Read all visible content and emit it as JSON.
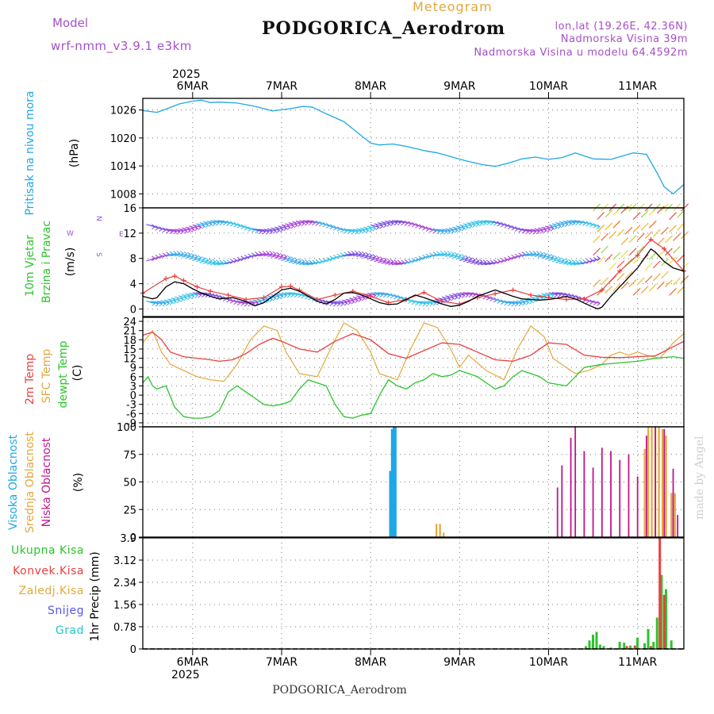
{
  "header": {
    "model_label": "Model",
    "model_name": "wrf-nmm_v3.9.1 e3km",
    "meteogram_label": "Meteogram",
    "station": "PODGORICA_Aerodrom",
    "lonlat": "lon,lat (19.26E, 42.36N)",
    "altitude": "Nadmorska Visina 39m",
    "model_altitude": "Nadmorska Visina u modelu 64.4592m",
    "footer_station": "PODGORICA_Aerodrom",
    "credit": "made by Angel"
  },
  "time_axis": {
    "year": "2025",
    "days": [
      "6MAR",
      "7MAR",
      "8MAR",
      "9MAR",
      "10MAR",
      "11MAR"
    ],
    "range_days": [
      -0.56,
      5.52
    ]
  },
  "colors": {
    "pressure": "#1ea7e6",
    "t2m": "#e8403e",
    "tsfc": "#e3a83b",
    "dewpt": "#2bc42b",
    "cloud_high": "#1ea7e6",
    "cloud_mid": "#e3a83b",
    "cloud_low": "#c0148c",
    "precip_total": "#2bc42b",
    "precip_conv": "#e8403e",
    "wind_gust": "#e8403e",
    "wind_speed": "#000000",
    "title_purple": "#a650c8",
    "label_blue": "#1ea7e6",
    "label_green": "#2bc42b",
    "label_red": "#e8403e",
    "label_orange": "#e3a83b",
    "label_magenta": "#c0148c",
    "label_violet": "#5555ee",
    "label_cyan": "#22c8c8"
  },
  "panels": {
    "pressure": {
      "label1": "Pritisak na nivou mora",
      "unit": "(hPa)"
    },
    "wind": {
      "label1": "10m Vjetar",
      "label2": "Brzina i Pravac",
      "unit": "(m/s)",
      "compass_w": "W",
      "compass_e": "E",
      "compass_n": "N",
      "compass_s": "S"
    },
    "temp": {
      "label1": "2m Temp",
      "label2": "SFC Temp",
      "label3": "dewpt Temp",
      "unit": "(C)"
    },
    "cloud": {
      "label1": "Visoka Oblacnost",
      "label2": "Srednja Oblacnost",
      "label3": "Niska Oblacnost",
      "unit": "(%)"
    },
    "precip": {
      "label1": "Ukupna Kisa",
      "label2": "Konvek.Kisa",
      "label3": "Zaledj.Kisa",
      "label4": "Snijeg",
      "label5": "Grad",
      "unit": "1hr Precip (mm)"
    }
  },
  "chart_data": [
    {
      "type": "line",
      "title": "Pritisak na nivou mora",
      "ylabel": "(hPa)",
      "ylim": [
        1005,
        1028.5
      ],
      "yticks": [
        "1008",
        "1014",
        "1020",
        "1026"
      ],
      "ytick_values": [
        1008,
        1014,
        1020,
        1026
      ],
      "series": [
        {
          "name": "pressure",
          "x": [
            -0.56,
            -0.4,
            -0.3,
            -0.15,
            0,
            0.1,
            0.2,
            0.3,
            0.5,
            0.7,
            0.9,
            1.1,
            1.25,
            1.35,
            1.5,
            1.7,
            1.85,
            2.0,
            2.1,
            2.25,
            2.4,
            2.6,
            2.75,
            2.9,
            3.05,
            3.25,
            3.4,
            3.55,
            3.7,
            3.85,
            4.0,
            4.15,
            4.3,
            4.5,
            4.7,
            4.95,
            5.1,
            5.15,
            5.22,
            5.3,
            5.4,
            5.52
          ],
          "values": [
            1025.9,
            1025.5,
            1026.2,
            1027.3,
            1027.9,
            1028.1,
            1027.6,
            1027.7,
            1027.5,
            1026.8,
            1025.8,
            1026.3,
            1026.8,
            1026.6,
            1025.2,
            1023.5,
            1021.2,
            1018.9,
            1018.5,
            1018.7,
            1018.2,
            1017.3,
            1016.8,
            1016.0,
            1015.2,
            1014.3,
            1013.9,
            1014.6,
            1015.5,
            1015.9,
            1015.4,
            1015.8,
            1016.8,
            1015.5,
            1015.4,
            1016.8,
            1016.5,
            1014.8,
            1012.5,
            1009.5,
            1008.0,
            1010.0
          ]
        }
      ]
    },
    {
      "type": "line",
      "title": "10m Vjetar Brzina i Pravac",
      "ylabel": "(m/s)",
      "ylim": [
        -1.2,
        16
      ],
      "yticks": [
        "0",
        "4",
        "8",
        "12",
        "16"
      ],
      "ytick_values": [
        0,
        4,
        8,
        12,
        16
      ],
      "series": [
        {
          "name": "wind_speed",
          "x": [
            -0.56,
            -0.45,
            -0.4,
            -0.3,
            -0.2,
            -0.1,
            0,
            0.1,
            0.2,
            0.3,
            0.45,
            0.6,
            0.7,
            0.8,
            0.9,
            1.0,
            1.1,
            1.2,
            1.3,
            1.4,
            1.5,
            1.6,
            1.7,
            1.8,
            1.9,
            2.0,
            2.1,
            2.2,
            2.3,
            2.4,
            2.5,
            2.6,
            2.7,
            2.8,
            2.9,
            3.0,
            3.1,
            3.2,
            3.3,
            3.4,
            3.5,
            3.6,
            3.7,
            3.8,
            3.9,
            4.0,
            4.1,
            4.2,
            4.3,
            4.45,
            4.55,
            4.6,
            4.7,
            4.8,
            4.9,
            5.0,
            5.1,
            5.15,
            5.2,
            5.3,
            5.4,
            5.52
          ],
          "values": [
            2.0,
            1.6,
            1.8,
            3.5,
            4.3,
            4.0,
            3.2,
            2.5,
            2.0,
            1.6,
            1.8,
            1.2,
            0.5,
            1.0,
            2.0,
            3.0,
            3.3,
            2.8,
            2.0,
            1.2,
            0.8,
            1.5,
            2.5,
            2.6,
            2.2,
            1.6,
            1.0,
            0.7,
            0.8,
            1.5,
            2.2,
            1.8,
            1.3,
            0.8,
            0.4,
            0.6,
            1.2,
            2.0,
            2.5,
            3.0,
            2.5,
            2.0,
            1.6,
            1.5,
            1.4,
            1.5,
            1.7,
            2.0,
            1.6,
            0.6,
            0.0,
            0.3,
            2.0,
            3.5,
            5.0,
            6.5,
            8.5,
            9.5,
            9.0,
            7.5,
            6.5,
            6.0
          ]
        },
        {
          "name": "wind_gust",
          "x": [
            -0.56,
            -0.3,
            -0.2,
            -0.1,
            0.05,
            0.2,
            0.4,
            0.6,
            0.8,
            1.0,
            1.1,
            1.2,
            1.4,
            1.6,
            1.8,
            2.0,
            2.2,
            2.4,
            2.6,
            2.8,
            3.0,
            3.2,
            3.4,
            3.6,
            3.8,
            4.0,
            4.2,
            4.4,
            4.6,
            4.8,
            5.0,
            5.15,
            5.3,
            5.52
          ],
          "values": [
            2.5,
            4.8,
            5.2,
            4.5,
            3.5,
            2.8,
            2.2,
            1.5,
            1.8,
            3.5,
            3.6,
            3.0,
            1.5,
            2.2,
            2.8,
            2.0,
            1.0,
            1.5,
            2.6,
            1.2,
            0.8,
            1.8,
            2.4,
            3.0,
            2.2,
            1.8,
            1.5,
            1.6,
            3.0,
            6.0,
            8.5,
            11.0,
            9.5,
            6.0
          ]
        }
      ]
    },
    {
      "type": "line",
      "title": "2m Temp / SFC Temp / dewpt Temp",
      "ylabel": "(C)",
      "ylim": [
        -10.3,
        25.3
      ],
      "yticks": [
        "-9",
        "-6",
        "-3",
        "0",
        "3",
        "6",
        "9",
        "12",
        "15",
        "18",
        "21",
        "24"
      ],
      "ytick_values": [
        -9,
        -6,
        -3,
        0,
        3,
        6,
        9,
        12,
        15,
        18,
        21,
        24
      ],
      "series": [
        {
          "name": "2m Temp",
          "x": [
            -0.56,
            -0.45,
            -0.35,
            -0.25,
            -0.1,
            0.05,
            0.2,
            0.3,
            0.45,
            0.6,
            0.75,
            0.9,
            1.0,
            1.2,
            1.4,
            1.6,
            1.8,
            2.0,
            2.2,
            2.4,
            2.6,
            2.8,
            3.0,
            3.2,
            3.4,
            3.6,
            3.8,
            4.0,
            4.2,
            4.4,
            4.6,
            4.8,
            5.0,
            5.2,
            5.35,
            5.52
          ],
          "values": [
            19.5,
            20.5,
            18,
            14,
            12.5,
            12,
            11.5,
            11,
            11.5,
            13.5,
            16.5,
            18.5,
            17.5,
            15,
            14,
            17.5,
            20,
            18,
            13.5,
            12,
            14.5,
            17,
            16.5,
            14,
            11.5,
            11,
            13,
            17,
            16.5,
            13,
            12.3,
            12.2,
            12.5,
            12.8,
            15.0,
            17.5
          ]
        },
        {
          "name": "SFC Temp",
          "x": [
            -0.56,
            -0.45,
            -0.35,
            -0.25,
            -0.1,
            0.05,
            0.2,
            0.35,
            0.5,
            0.65,
            0.8,
            0.95,
            1.05,
            1.2,
            1.4,
            1.55,
            1.7,
            1.85,
            2.0,
            2.1,
            2.3,
            2.45,
            2.6,
            2.75,
            2.9,
            3.0,
            3.1,
            3.3,
            3.5,
            3.65,
            3.8,
            3.95,
            4.05,
            4.2,
            4.3,
            4.45,
            4.6,
            4.7,
            4.8,
            4.9,
            5.0,
            5.1,
            5.25,
            5.4,
            5.52
          ],
          "values": [
            17,
            21,
            14,
            10,
            8,
            6,
            5,
            4.5,
            10,
            18,
            22.5,
            21,
            14,
            7,
            6,
            15,
            23.5,
            21,
            14,
            7,
            5,
            15,
            23.5,
            22,
            15,
            9,
            13,
            8,
            5,
            15,
            22.5,
            19,
            12,
            9,
            7,
            8,
            10,
            13,
            14,
            13,
            14,
            13,
            12,
            17,
            20
          ]
        },
        {
          "name": "dewpt Temp",
          "x": [
            -0.56,
            -0.5,
            -0.45,
            -0.4,
            -0.3,
            -0.2,
            -0.1,
            0,
            0.1,
            0.2,
            0.3,
            0.4,
            0.5,
            0.6,
            0.7,
            0.8,
            0.9,
            1.0,
            1.1,
            1.2,
            1.3,
            1.4,
            1.5,
            1.6,
            1.7,
            1.8,
            1.9,
            2.0,
            2.1,
            2.2,
            2.3,
            2.4,
            2.5,
            2.6,
            2.7,
            2.8,
            2.9,
            3.0,
            3.1,
            3.2,
            3.3,
            3.4,
            3.5,
            3.6,
            3.7,
            3.8,
            3.9,
            4.0,
            4.2,
            4.4,
            4.6,
            4.8,
            5.0,
            5.2,
            5.4,
            5.52
          ],
          "values": [
            4,
            6,
            3,
            2,
            3,
            -4,
            -7,
            -7.5,
            -7.5,
            -7,
            -5,
            1,
            3,
            1,
            -1,
            -3,
            -3.5,
            -3,
            -2,
            2,
            5,
            4,
            3,
            -3,
            -7,
            -7.5,
            -6.5,
            -6,
            0,
            5,
            3,
            2,
            4,
            5,
            7,
            6,
            6.5,
            8,
            7,
            6,
            4,
            2,
            3,
            6,
            8,
            7,
            6,
            4,
            3,
            9,
            10,
            10.5,
            11,
            12,
            12.5,
            12
          ]
        }
      ]
    },
    {
      "type": "bar",
      "title": "Oblacnost",
      "ylabel": "(%)",
      "ylim": [
        0,
        100
      ],
      "yticks": [
        "0",
        "25",
        "50",
        "75",
        "100"
      ],
      "ytick_values": [
        0,
        25,
        50,
        75,
        100
      ],
      "series": [
        {
          "name": "Visoka Oblacnost",
          "x": [
            2.22,
            2.24,
            2.26,
            2.28
          ],
          "values": [
            60,
            98,
            100,
            100
          ]
        },
        {
          "name": "Srednja Oblacnost",
          "x": [
            2.74,
            2.78,
            2.82,
            5.08,
            5.12,
            5.16,
            5.2,
            5.24,
            5.28,
            5.32,
            5.38,
            5.42
          ],
          "values": [
            12,
            12,
            4,
            80,
            100,
            100,
            100,
            100,
            98,
            92,
            40,
            40
          ]
        },
        {
          "name": "Niska Oblacnost",
          "x": [
            4.1,
            4.15,
            4.25,
            4.3,
            4.4,
            4.5,
            4.6,
            4.7,
            4.8,
            4.9,
            5.0,
            5.1,
            5.2,
            5.3,
            5.4,
            5.45
          ],
          "values": [
            45,
            65,
            90,
            100,
            78,
            63,
            81,
            78,
            70,
            75,
            55,
            92,
            100,
            98,
            62,
            20
          ]
        }
      ]
    },
    {
      "type": "bar",
      "title": "1hr Precip",
      "ylabel": "1hr Precip (mm)",
      "ylim": [
        0,
        3.9
      ],
      "yticks": [
        "0",
        "0.78",
        "1.56",
        "2.34",
        "3.12",
        "3.9"
      ],
      "ytick_values": [
        0,
        0.78,
        1.56,
        2.34,
        3.12,
        3.9
      ],
      "series": [
        {
          "name": "Ukupna Kisa",
          "x": [
            4.42,
            4.46,
            4.5,
            4.54,
            4.58,
            4.62,
            4.7,
            4.8,
            4.85,
            4.92,
            5.0,
            5.08,
            5.12,
            5.18,
            5.22,
            5.27,
            5.32,
            5.38
          ],
          "values": [
            0.1,
            0.3,
            0.5,
            0.6,
            0.15,
            0.1,
            0.05,
            0.25,
            0.22,
            0.12,
            0.4,
            0.2,
            0.7,
            0.25,
            1.1,
            2.6,
            2.1,
            0.3
          ]
        },
        {
          "name": "Konvek.Kisa",
          "x": [
            4.87,
            4.96,
            5.14,
            5.24,
            5.29
          ],
          "values": [
            0.1,
            0.12,
            0.1,
            3.9,
            1.9
          ]
        }
      ]
    }
  ]
}
